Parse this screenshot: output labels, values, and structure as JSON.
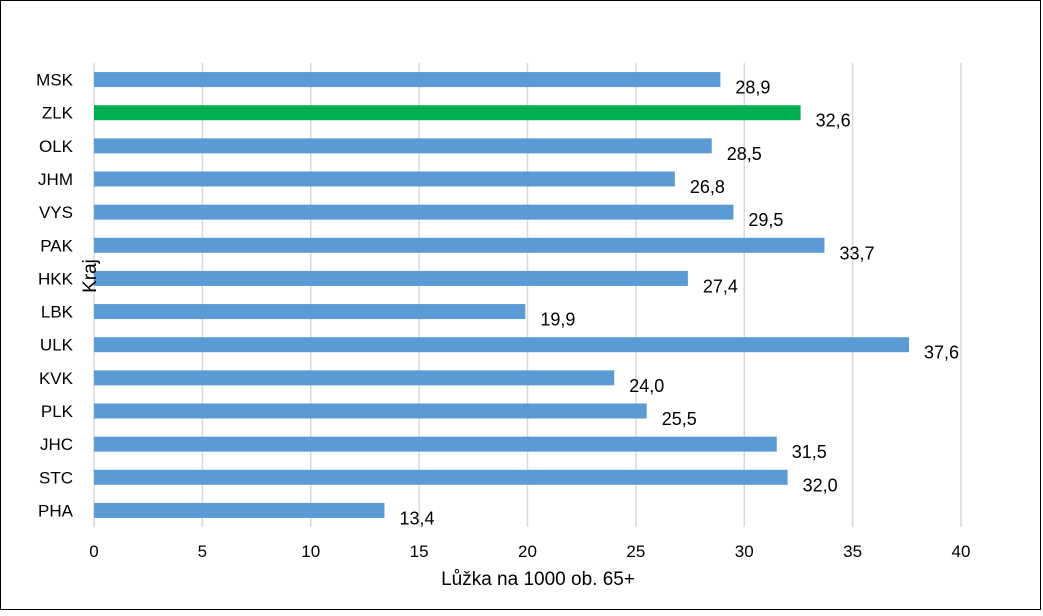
{
  "chart_data": {
    "type": "bar",
    "orientation": "horizontal",
    "title": "",
    "xlabel": "Lůžka na 1000 ob. 65+",
    "ylabel": "Kraj",
    "xlim": [
      0,
      40
    ],
    "xticks": [
      "0",
      "5",
      "10",
      "15",
      "20",
      "25",
      "30",
      "35",
      "40"
    ],
    "grid": "vertical",
    "categories": [
      "MSK",
      "ZLK",
      "OLK",
      "JHM",
      "VYS",
      "PAK",
      "HKK",
      "LBK",
      "ULK",
      "KVK",
      "PLK",
      "JHC",
      "STC",
      "PHA"
    ],
    "values": [
      28.9,
      32.6,
      28.5,
      26.8,
      29.5,
      33.7,
      27.4,
      19.9,
      37.6,
      24.0,
      25.5,
      31.5,
      32.0,
      13.4
    ],
    "value_labels": [
      "28,9",
      "32,6",
      "28,5",
      "26,8",
      "29,5",
      "33,7",
      "27,4",
      "19,9",
      "37,6",
      "24,0",
      "25,5",
      "31,5",
      "32,0",
      "13,4"
    ],
    "highlight": "ZLK",
    "colors": {
      "bar": "#5b9bd5",
      "highlight": "#00b050",
      "grid": "#d9d9d9"
    }
  }
}
